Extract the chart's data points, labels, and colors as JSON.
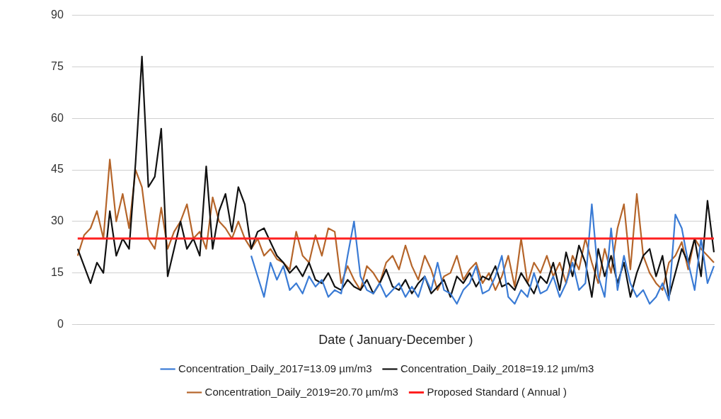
{
  "chart_data": {
    "type": "line",
    "xlabel": "Date ( January-December )",
    "categories": [
      null,
      null,
      null,
      null,
      null,
      null,
      null,
      null,
      null,
      null,
      null,
      null,
      null,
      null,
      null,
      null,
      null,
      null,
      null,
      null,
      null,
      null,
      null,
      null,
      null,
      null,
      null,
      null,
      null,
      null,
      null,
      null,
      null,
      null,
      null,
      null,
      null,
      null,
      null,
      null,
      null,
      null,
      null,
      null,
      null,
      null,
      null,
      null,
      null,
      null,
      null,
      null,
      null,
      null,
      null,
      null,
      null,
      null,
      null,
      null,
      null,
      null,
      null,
      null,
      null,
      null,
      null,
      null,
      null,
      null,
      null,
      null,
      null,
      null,
      null,
      null,
      null,
      null,
      null,
      null,
      null,
      null,
      null,
      null,
      null,
      null,
      null,
      null,
      null,
      null,
      null,
      null,
      null,
      null,
      null,
      null,
      null,
      null,
      null,
      null
    ],
    "series": [
      {
        "name": "Concentration_Daily_2017=13.09 µm/m3",
        "color": "#3a7bd5",
        "values": [
          null,
          null,
          null,
          null,
          null,
          null,
          null,
          null,
          null,
          null,
          null,
          null,
          null,
          null,
          null,
          null,
          null,
          null,
          null,
          null,
          null,
          null,
          null,
          null,
          null,
          null,
          null,
          20,
          14,
          8,
          18,
          13,
          17,
          10,
          12,
          9,
          14,
          11,
          13,
          8,
          10,
          9,
          20,
          30,
          14,
          10,
          9,
          12,
          8,
          10,
          12,
          8,
          11,
          8,
          14,
          10,
          18,
          10,
          9,
          6,
          10,
          12,
          17,
          9,
          10,
          14,
          20,
          8,
          6,
          10,
          8,
          15,
          9,
          10,
          14,
          8,
          12,
          18,
          10,
          12,
          35,
          14,
          8,
          28,
          10,
          20,
          12,
          8,
          10,
          6,
          8,
          12,
          7,
          32,
          28,
          18,
          10,
          25,
          12,
          17
        ]
      },
      {
        "name": "Concentration_Daily_2018=19.12 µm/m3",
        "color": "#111111",
        "values": [
          22,
          17,
          12,
          18,
          15,
          33,
          20,
          25,
          22,
          47,
          78,
          40,
          43,
          57,
          14,
          22,
          30,
          22,
          25,
          20,
          46,
          22,
          33,
          38,
          27,
          40,
          35,
          22,
          27,
          28,
          24,
          20,
          18,
          15,
          17,
          14,
          18,
          13,
          12,
          15,
          11,
          10,
          13,
          11,
          10,
          13,
          9,
          12,
          16,
          11,
          10,
          13,
          9,
          12,
          14,
          9,
          11,
          13,
          8,
          14,
          12,
          15,
          11,
          14,
          13,
          17,
          11,
          12,
          10,
          15,
          12,
          9,
          14,
          12,
          18,
          10,
          21,
          14,
          23,
          18,
          8,
          22,
          14,
          20,
          12,
          18,
          8,
          15,
          20,
          22,
          14,
          20,
          8,
          15,
          22,
          18,
          25,
          14,
          36,
          21
        ]
      },
      {
        "name": "Concentration_Daily_2019=20.70 µm/m3",
        "color": "#b5652a",
        "values": [
          20,
          26,
          28,
          33,
          25,
          48,
          30,
          38,
          28,
          45,
          40,
          25,
          22,
          34,
          22,
          27,
          30,
          35,
          25,
          27,
          22,
          37,
          30,
          28,
          25,
          30,
          25,
          22,
          25,
          20,
          22,
          19,
          18,
          16,
          27,
          20,
          18,
          26,
          20,
          28,
          27,
          12,
          17,
          13,
          10,
          17,
          15,
          12,
          18,
          20,
          16,
          23,
          17,
          13,
          20,
          16,
          10,
          14,
          15,
          20,
          13,
          16,
          18,
          12,
          15,
          10,
          14,
          20,
          11,
          25,
          12,
          18,
          15,
          20,
          14,
          18,
          12,
          20,
          16,
          25,
          18,
          12,
          22,
          15,
          28,
          35,
          16,
          38,
          20,
          15,
          12,
          10,
          18,
          20,
          24,
          16,
          25,
          22,
          20,
          18
        ]
      }
    ],
    "ref_lines": [
      {
        "axis": "y",
        "value": 25,
        "label": "Proposed Standard ( Annual )",
        "color": "#ff2020"
      }
    ],
    "ylim": [
      0,
      90
    ],
    "yticks": [
      0,
      15,
      30,
      45,
      60,
      75,
      90
    ],
    "grid": "y",
    "legend": "bottom",
    "tick_labels": "y",
    "marker": "none",
    "line_style": "solid"
  }
}
